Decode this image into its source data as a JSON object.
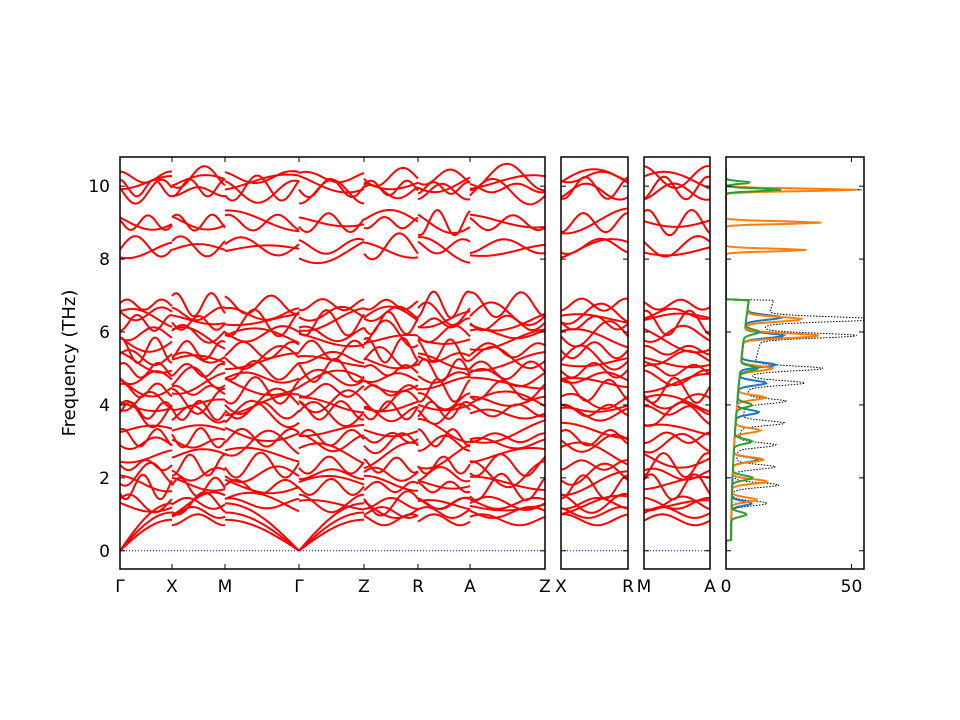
{
  "chart_data": {
    "type": "line",
    "ylabel": "Frequency (THz)",
    "ylim": [
      -0.5,
      10.8
    ],
    "yticks": [
      0,
      2,
      4,
      6,
      8,
      10
    ],
    "grid": false,
    "panels": [
      {
        "kind": "band",
        "segments": [
          {
            "from": "Γ",
            "to": "X"
          },
          {
            "from": "X",
            "to": "M"
          },
          {
            "from": "M",
            "to": "Γ"
          },
          {
            "from": "Γ",
            "to": "Z"
          },
          {
            "from": "Z",
            "to": "R"
          },
          {
            "from": "R",
            "to": "A"
          },
          {
            "from": "A",
            "to": "Z"
          }
        ],
        "xtick_labels": [
          "Γ",
          "X",
          "M",
          "Γ",
          "Z",
          "R",
          "A",
          "Z"
        ]
      },
      {
        "kind": "band",
        "segments": [
          {
            "from": "X",
            "to": "R"
          }
        ],
        "xtick_labels": [
          "X",
          "R"
        ]
      },
      {
        "kind": "band",
        "segments": [
          {
            "from": "M",
            "to": "A"
          }
        ],
        "xtick_labels": [
          "M",
          "A"
        ]
      },
      {
        "kind": "dos",
        "xlim": [
          0,
          55
        ],
        "xticks": [
          0,
          50
        ],
        "xtick_labels": [
          "0",
          "50"
        ]
      }
    ],
    "band_series": {
      "color": "#ff0000",
      "approx_frequencies_at_gamma_THz": [
        0,
        0,
        0,
        1.25,
        1.3,
        1.75,
        1.85,
        2.1,
        2.35,
        2.6,
        2.95,
        3.1,
        3.3,
        3.75,
        3.85,
        4.0,
        4.1,
        4.4,
        4.6,
        4.75,
        4.95,
        5.2,
        5.3,
        5.5,
        5.8,
        5.95,
        6.25,
        6.35,
        6.5,
        6.75,
        8.25,
        8.35,
        9.0,
        9.05,
        9.85,
        9.95,
        10.1,
        10.25
      ]
    },
    "dos_series": [
      {
        "color": "#000000",
        "style": "dotted",
        "peaks_THz": [
          1.3,
          1.8,
          2.3,
          2.9,
          3.5,
          4.1,
          4.6,
          5.0,
          5.9,
          6.35,
          8.25,
          9.0,
          9.9
        ],
        "peak_heights": [
          14,
          18,
          16,
          15,
          17,
          16,
          22,
          28,
          38,
          45,
          32,
          38,
          54
        ]
      },
      {
        "color": "#1f77b4",
        "style": "solid",
        "peaks_THz": [
          1.3,
          2.5,
          3.8,
          4.6,
          5.1,
          5.9,
          6.4
        ],
        "peak_heights": [
          8,
          10,
          9,
          11,
          14,
          16,
          14
        ]
      },
      {
        "color": "#ff7f0e",
        "style": "solid",
        "peaks_THz": [
          1.4,
          1.9,
          2.5,
          3.3,
          4.2,
          5.0,
          5.9,
          6.35,
          8.25,
          9.0,
          9.9
        ],
        "peak_heights": [
          10,
          14,
          12,
          10,
          11,
          13,
          30,
          22,
          32,
          38,
          52
        ]
      },
      {
        "color": "#2ca02c",
        "style": "solid",
        "peaks_THz": [
          1.0,
          2.0,
          3.0,
          4.0,
          5.0,
          6.0,
          9.9,
          10.1
        ],
        "peak_heights": [
          6,
          8,
          7,
          6,
          7,
          6,
          22,
          10
        ]
      }
    ],
    "zero_line": {
      "color": "#0000cc",
      "style": "dotted",
      "y": 0
    }
  }
}
